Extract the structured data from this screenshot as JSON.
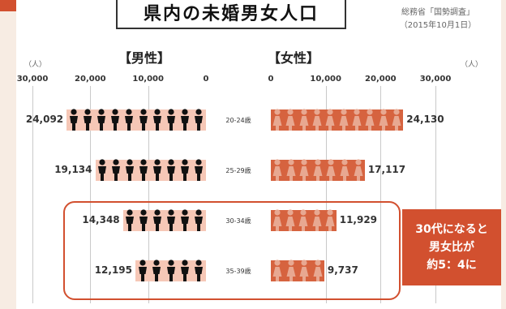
{
  "title": "県内の未婚男女人口",
  "source": [
    "総務省「国勢調査」",
    "（2015年10月1日）"
  ],
  "male_header": "【男性】",
  "female_header": "【女性】",
  "unit_left": "（人）",
  "unit_right": "（人）",
  "callout_lines": [
    "30代になると",
    "男女比が",
    "約5：4に"
  ],
  "colors": {
    "accent": "#d2502f",
    "male_figure": "#111111",
    "male_bar": "#f6c7b6",
    "female_bar": "#d6633f",
    "female_figure": "#e8a891"
  },
  "chart_data": {
    "type": "bar",
    "orientation": "horizontal-butterfly",
    "title": "県内の未婚男女人口",
    "categories": [
      "20-24歳",
      "25-29歳",
      "30-34歳",
      "35-39歳"
    ],
    "series": [
      {
        "name": "男性",
        "values": [
          24092,
          19134,
          14348,
          12195
        ]
      },
      {
        "name": "女性",
        "values": [
          24130,
          17117,
          11929,
          9737
        ]
      }
    ],
    "value_labels_male": [
      "24,092",
      "19,134",
      "14,348",
      "12,195"
    ],
    "value_labels_female": [
      "24,130",
      "17,117",
      "11,929",
      "9,737"
    ],
    "male_ticks": [
      "30,000",
      "20,000",
      "10,000",
      "0"
    ],
    "female_ticks": [
      "0",
      "10,000",
      "20,000",
      "30,000"
    ],
    "xlim": [
      0,
      30000
    ],
    "grid": true,
    "icon": "person-figure-icon"
  }
}
